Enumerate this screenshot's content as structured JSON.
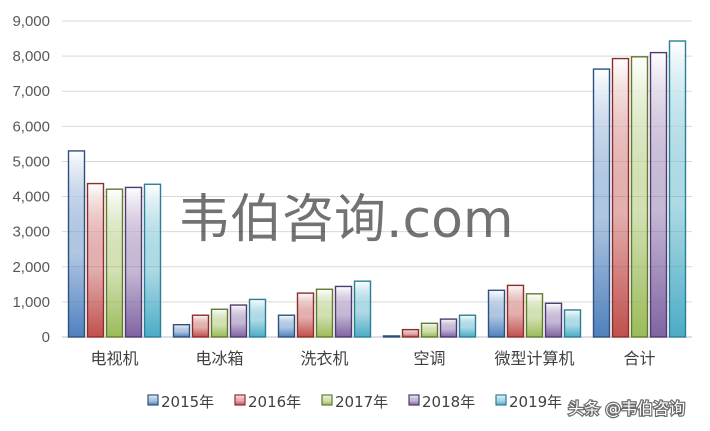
{
  "chart_data": {
    "type": "bar",
    "categories": [
      "电视机",
      "电冰箱",
      "洗衣机",
      "空调",
      "微型计算机",
      "合计"
    ],
    "series": [
      {
        "name": "2015年",
        "values": [
          5300,
          350,
          620,
          30,
          1330,
          7630
        ]
      },
      {
        "name": "2016年",
        "values": [
          4370,
          620,
          1250,
          210,
          1470,
          7930
        ]
      },
      {
        "name": "2017年",
        "values": [
          4210,
          790,
          1360,
          390,
          1230,
          7980
        ]
      },
      {
        "name": "2018年",
        "values": [
          4260,
          910,
          1440,
          510,
          960,
          8100
        ]
      },
      {
        "name": "2019年",
        "values": [
          4350,
          1070,
          1590,
          620,
          770,
          8430
        ]
      }
    ],
    "ylim": [
      0,
      9000
    ],
    "yticks": [
      0,
      1000,
      2000,
      3000,
      4000,
      5000,
      6000,
      7000,
      8000,
      9000
    ],
    "ytick_labels": [
      "0",
      "1,000",
      "2,000",
      "3,000",
      "4,000",
      "5,000",
      "6,000",
      "7,000",
      "8,000",
      "9,000"
    ],
    "grid": true,
    "legend_position": "bottom"
  },
  "colors": {
    "series_fill": [
      "#4f81bd",
      "#c0504d",
      "#9bbb59",
      "#8064a2",
      "#4bacc6"
    ],
    "series_edge": [
      "#2f4f7f",
      "#8c2d2a",
      "#5f7a2e",
      "#4e3a6e",
      "#2a7f97"
    ],
    "grid": "#d9d9d9"
  },
  "watermark": "韦伯咨询.com",
  "credit": "头条 @韦伯咨询"
}
